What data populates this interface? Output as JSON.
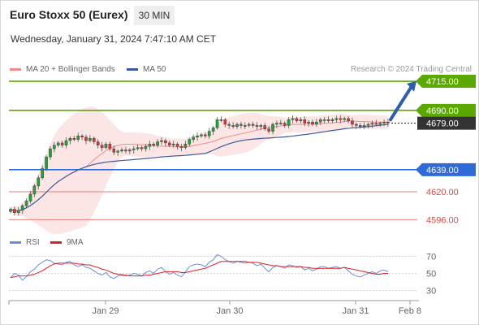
{
  "header": {
    "title": "Euro Stoxx 50 (Eurex)",
    "timeframe": "30 MIN",
    "datetime": "Wednesday, January 31, 2024 7:47:10 AM CET",
    "credit": "Research © 2024 Trading Central"
  },
  "legend": {
    "ma20_label": "MA 20 + Bollinger Bands",
    "ma20_color": "#f28b8b",
    "ma50_label": "MA 50",
    "ma50_color": "#3a5a9c"
  },
  "rsi_legend": {
    "rsi_label": "RSI",
    "rsi_color": "#6a8fd8",
    "ma_label": "9MA",
    "ma_color": "#e02020"
  },
  "chart_data": [
    {
      "type": "candlestick",
      "ylim": [
        4590,
        4722
      ],
      "x_ticks": [
        "Jan 29",
        "Jan 30",
        "Jan 31",
        "Feb 8"
      ],
      "last_price": 4679,
      "levels": [
        {
          "value": 4715,
          "label": "4715.00",
          "color": "#5aa800",
          "style": "target"
        },
        {
          "value": 4690,
          "label": "4690.00",
          "color": "#5aa800",
          "style": "resistance"
        },
        {
          "value": 4679,
          "label": "4679.00",
          "color": "#333333",
          "style": "current"
        },
        {
          "value": 4639,
          "label": "4639.00",
          "color": "#2f6bd6",
          "style": "pivot"
        },
        {
          "value": 4620,
          "label": "4620.00",
          "color": "#e08080",
          "style": "support"
        },
        {
          "value": 4596,
          "label": "4596.00",
          "color": "#e08080",
          "style": "support"
        }
      ],
      "close": [
        4605,
        4602,
        4604,
        4608,
        4612,
        4618,
        4625,
        4632,
        4640,
        4650,
        4657,
        4660,
        4662,
        4660,
        4664,
        4666,
        4665,
        4668,
        4667,
        4664,
        4666,
        4663,
        4660,
        4658,
        4661,
        4657,
        4654,
        4655,
        4656,
        4655,
        4656,
        4657,
        4658,
        4657,
        4659,
        4661,
        4660,
        4663,
        4664,
        4662,
        4660,
        4661,
        4659,
        4658,
        4661,
        4665,
        4667,
        4668,
        4669,
        4668,
        4672,
        4675,
        4682,
        4682,
        4678,
        4677,
        4676,
        4678,
        4677,
        4677,
        4678,
        4677,
        4676,
        4677,
        4674,
        4672,
        4678,
        4679,
        4679,
        4677,
        4682,
        4683,
        4681,
        4682,
        4679,
        4680,
        4678,
        4680,
        4682,
        4682,
        4681,
        4682,
        4683,
        4682,
        4683,
        4681,
        4678,
        4677,
        4676,
        4677,
        4678,
        4679,
        4678,
        4679,
        4680,
        4679
      ]
    },
    {
      "type": "line",
      "title": "RSI",
      "ylim": [
        20,
        80
      ],
      "y_ticks": [
        30,
        50,
        70
      ],
      "rsi": [
        45,
        50,
        48,
        42,
        46,
        52,
        55,
        60,
        63,
        66,
        65,
        62,
        61,
        60,
        63,
        64,
        60,
        58,
        60,
        57,
        56,
        53,
        50,
        48,
        51,
        46,
        44,
        47,
        49,
        47,
        48,
        50,
        49,
        47,
        51,
        53,
        50,
        55,
        57,
        52,
        49,
        51,
        48,
        46,
        52,
        58,
        60,
        61,
        60,
        58,
        63,
        66,
        72,
        70,
        66,
        64,
        62,
        64,
        63,
        62,
        63,
        62,
        59,
        61,
        56,
        52,
        57,
        59,
        58,
        56,
        60,
        59,
        57,
        58,
        54,
        56,
        53,
        55,
        58,
        58,
        56,
        57,
        58,
        56,
        57,
        53,
        49,
        47,
        46,
        48,
        50,
        52,
        50,
        53,
        54,
        52
      ],
      "ma": [
        45,
        46,
        47,
        47,
        47,
        48,
        49,
        51,
        53,
        56,
        59,
        61,
        62,
        62,
        62,
        62,
        62,
        61,
        61,
        60,
        60,
        58,
        57,
        55,
        54,
        52,
        50,
        49,
        48,
        48,
        47,
        47,
        47,
        47,
        48,
        48,
        49,
        50,
        51,
        52,
        52,
        52,
        52,
        51,
        51,
        52,
        53,
        54,
        55,
        56,
        58,
        60,
        62,
        64,
        64,
        64,
        64,
        64,
        64,
        64,
        63,
        63,
        63,
        62,
        61,
        60,
        59,
        59,
        58,
        58,
        58,
        58,
        58,
        58,
        57,
        57,
        56,
        56,
        56,
        56,
        56,
        56,
        56,
        56,
        57,
        56,
        55,
        54,
        53,
        52,
        51,
        50,
        49,
        49,
        50,
        50
      ]
    }
  ]
}
